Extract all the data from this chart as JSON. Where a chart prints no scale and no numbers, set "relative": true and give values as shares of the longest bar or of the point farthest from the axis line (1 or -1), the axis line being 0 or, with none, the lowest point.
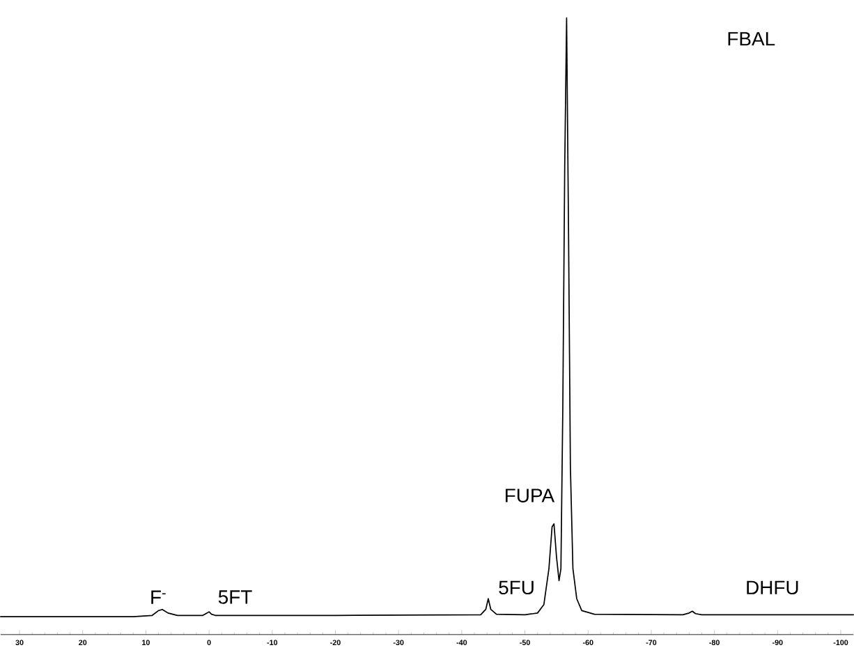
{
  "chart_data": {
    "type": "line",
    "relative": true,
    "xlim": [
      33,
      -102
    ],
    "xticks": [
      30,
      20,
      10,
      0,
      -10,
      -20,
      -30,
      -40,
      -50,
      -60,
      -70,
      -80,
      -90,
      -100
    ],
    "series": [
      {
        "color": "#000000",
        "x": [
          33,
          12,
          9,
          8,
          7.4,
          6.5,
          5,
          1,
          0.3,
          0,
          -0.4,
          -1,
          -20,
          -43,
          -43.8,
          -44.2,
          -44.6,
          -45.5,
          -50,
          -52,
          -53,
          -53.8,
          -54.3,
          -54.6,
          -55,
          -55.4,
          -55.7,
          -56,
          -56.3,
          -56.6,
          -56.9,
          -57.2,
          -57.6,
          -58.2,
          -59,
          -61,
          -75,
          -76,
          -76.5,
          -77,
          -78,
          -102
        ],
        "values": [
          0,
          0,
          0.002,
          0.01,
          0.012,
          0.006,
          0.002,
          0.002,
          0.006,
          0.008,
          0.004,
          0.002,
          0.002,
          0.003,
          0.012,
          0.03,
          0.012,
          0.004,
          0.003,
          0.006,
          0.02,
          0.08,
          0.15,
          0.155,
          0.1,
          0.06,
          0.08,
          0.35,
          0.75,
          1,
          0.65,
          0.25,
          0.08,
          0.03,
          0.01,
          0.004,
          0.003,
          0.006,
          0.009,
          0.005,
          0.003,
          0.003
        ]
      }
    ],
    "annotations": [
      "F$^{-}$",
      "5FT",
      "5FU",
      "FUPA",
      "FBAL",
      "DHFU"
    ],
    "marker": "none",
    "line_style": "solid"
  }
}
